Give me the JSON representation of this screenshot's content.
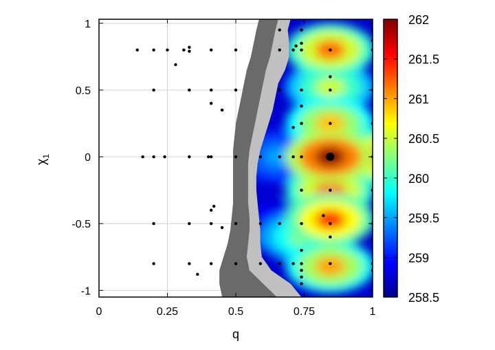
{
  "chart_data": {
    "type": "heatmap",
    "xlabel": "q",
    "ylabel": "χ",
    "ylabel_subscript": "1",
    "xlim": [
      0,
      1
    ],
    "ylim": [
      -1.05,
      1.03
    ],
    "x_ticks": [
      {
        "value": 0,
        "label": "0"
      },
      {
        "value": 0.25,
        "label": "0.25"
      },
      {
        "value": 0.5,
        "label": "0.5"
      },
      {
        "value": 0.75,
        "label": "0.75"
      },
      {
        "value": 1,
        "label": "1"
      }
    ],
    "y_ticks": [
      {
        "value": 1,
        "label": "1"
      },
      {
        "value": 0.5,
        "label": "0.5"
      },
      {
        "value": 0,
        "label": "0"
      },
      {
        "value": -0.5,
        "label": "-0.5"
      },
      {
        "value": -1,
        "label": "-1"
      }
    ],
    "grid": true,
    "colorbar": {
      "min": 258.5,
      "max": 262,
      "ticks": [
        {
          "value": 262,
          "label": "262"
        },
        {
          "value": 261.5,
          "label": "261.5"
        },
        {
          "value": 261,
          "label": "261"
        },
        {
          "value": 260.5,
          "label": "260.5"
        },
        {
          "value": 260,
          "label": "260"
        },
        {
          "value": 259.5,
          "label": "259.5"
        },
        {
          "value": 259,
          "label": "259"
        },
        {
          "value": 258.5,
          "label": "258.5"
        }
      ],
      "colors": [
        "#00008f",
        "#0000ff",
        "#0080ff",
        "#00ffff",
        "#80ff80",
        "#ffff00",
        "#ff8000",
        "#ff0000",
        "#800000"
      ]
    },
    "band_colors": {
      "dark": "#6a6a6a",
      "light": "#c0c0c0",
      "point": "#000000"
    },
    "boundary": [
      {
        "chi": 1.03,
        "dark": 0.585,
        "light": 0.655,
        "color": 0.7
      },
      {
        "chi": 0.95,
        "dark": 0.575,
        "light": 0.645,
        "color": 0.69
      },
      {
        "chi": 0.85,
        "dark": 0.565,
        "light": 0.635,
        "color": 0.695
      },
      {
        "chi": 0.75,
        "dark": 0.555,
        "light": 0.625,
        "color": 0.695
      },
      {
        "chi": 0.65,
        "dark": 0.54,
        "light": 0.61,
        "color": 0.68
      },
      {
        "chi": 0.55,
        "dark": 0.53,
        "light": 0.6,
        "color": 0.655
      },
      {
        "chi": 0.45,
        "dark": 0.52,
        "light": 0.59,
        "color": 0.645
      },
      {
        "chi": 0.35,
        "dark": 0.51,
        "light": 0.58,
        "color": 0.635
      },
      {
        "chi": 0.25,
        "dark": 0.5,
        "light": 0.57,
        "color": 0.62
      },
      {
        "chi": 0.15,
        "dark": 0.495,
        "light": 0.56,
        "color": 0.605
      },
      {
        "chi": 0.05,
        "dark": 0.49,
        "light": 0.55,
        "color": 0.59
      },
      {
        "chi": -0.05,
        "dark": 0.49,
        "light": 0.545,
        "color": 0.58
      },
      {
        "chi": -0.15,
        "dark": 0.49,
        "light": 0.545,
        "color": 0.575
      },
      {
        "chi": -0.25,
        "dark": 0.49,
        "light": 0.545,
        "color": 0.575
      },
      {
        "chi": -0.35,
        "dark": 0.49,
        "light": 0.545,
        "color": 0.58
      },
      {
        "chi": -0.45,
        "dark": 0.485,
        "light": 0.55,
        "color": 0.585
      },
      {
        "chi": -0.55,
        "dark": 0.48,
        "light": 0.55,
        "color": 0.59
      },
      {
        "chi": -0.65,
        "dark": 0.47,
        "light": 0.545,
        "color": 0.59
      },
      {
        "chi": -0.75,
        "dark": 0.455,
        "light": 0.54,
        "color": 0.595
      },
      {
        "chi": -0.85,
        "dark": 0.44,
        "light": 0.55,
        "color": 0.63
      },
      {
        "chi": -0.95,
        "dark": 0.44,
        "light": 0.6,
        "color": 0.7
      },
      {
        "chi": -1.05,
        "dark": 0.45,
        "light": 0.65,
        "color": 0.74
      }
    ],
    "hotspots": [
      {
        "q": 0.845,
        "chi": 0.0,
        "value": 262.0
      },
      {
        "q": 0.845,
        "chi": -0.25,
        "value": 261.2
      },
      {
        "q": 0.845,
        "chi": -0.47,
        "value": 261.4
      },
      {
        "q": 0.845,
        "chi": -0.82,
        "value": 261.0
      },
      {
        "q": 0.845,
        "chi": 0.25,
        "value": 260.9
      },
      {
        "q": 0.845,
        "chi": 0.52,
        "value": 260.5
      },
      {
        "q": 0.845,
        "chi": 0.8,
        "value": 261.2
      },
      {
        "q": 1.0,
        "chi": 0.0,
        "value": 261.3
      },
      {
        "q": 0.62,
        "chi": -0.5,
        "value": 259.0
      },
      {
        "q": 0.66,
        "chi": 0.0,
        "value": 259.5
      },
      {
        "q": 0.75,
        "chi": -0.6,
        "value": 260.3
      }
    ],
    "points": [
      {
        "q": 0.845,
        "chi": 0.0,
        "major": true
      },
      {
        "q": 0.14,
        "chi": 0.8
      },
      {
        "q": 0.2,
        "chi": 0.8
      },
      {
        "q": 0.25,
        "chi": 0.8
      },
      {
        "q": 0.31,
        "chi": 0.8
      },
      {
        "q": 0.33,
        "chi": 0.82
      },
      {
        "q": 0.33,
        "chi": 0.79
      },
      {
        "q": 0.41,
        "chi": 0.8
      },
      {
        "q": 0.5,
        "chi": 0.8
      },
      {
        "q": 0.66,
        "chi": 0.8
      },
      {
        "q": 0.71,
        "chi": 0.8
      },
      {
        "q": 0.74,
        "chi": 0.8
      },
      {
        "q": 0.845,
        "chi": 0.8
      },
      {
        "q": 1.0,
        "chi": 0.8
      },
      {
        "q": 0.28,
        "chi": 0.69
      },
      {
        "q": 0.66,
        "chi": 0.95
      },
      {
        "q": 0.74,
        "chi": 0.95
      },
      {
        "q": 1.0,
        "chi": 0.95
      },
      {
        "q": 0.74,
        "chi": 0.85
      },
      {
        "q": 1.0,
        "chi": 0.87
      },
      {
        "q": 0.72,
        "chi": 0.83
      },
      {
        "q": 0.2,
        "chi": 0.5
      },
      {
        "q": 0.33,
        "chi": 0.5
      },
      {
        "q": 0.41,
        "chi": 0.5
      },
      {
        "q": 0.5,
        "chi": 0.5
      },
      {
        "q": 0.66,
        "chi": 0.5
      },
      {
        "q": 0.74,
        "chi": 0.5
      },
      {
        "q": 0.845,
        "chi": 0.5
      },
      {
        "q": 1.0,
        "chi": 0.5
      },
      {
        "q": 0.41,
        "chi": 0.4
      },
      {
        "q": 0.45,
        "chi": 0.35
      },
      {
        "q": 0.845,
        "chi": 0.6
      },
      {
        "q": 0.71,
        "chi": 0.22
      },
      {
        "q": 0.74,
        "chi": 0.25
      },
      {
        "q": 0.845,
        "chi": 0.25
      },
      {
        "q": 1.0,
        "chi": 0.25
      },
      {
        "q": 0.74,
        "chi": 0.38
      },
      {
        "q": 0.16,
        "chi": 0.0
      },
      {
        "q": 0.2,
        "chi": 0.0
      },
      {
        "q": 0.24,
        "chi": 0.0
      },
      {
        "q": 0.33,
        "chi": 0.0
      },
      {
        "q": 0.4,
        "chi": 0.0
      },
      {
        "q": 0.41,
        "chi": 0.0
      },
      {
        "q": 0.5,
        "chi": 0.0
      },
      {
        "q": 0.59,
        "chi": 0.0
      },
      {
        "q": 0.66,
        "chi": 0.0
      },
      {
        "q": 0.71,
        "chi": 0.0
      },
      {
        "q": 0.74,
        "chi": 0.0
      },
      {
        "q": 1.0,
        "chi": 0.0
      },
      {
        "q": 0.74,
        "chi": -0.25
      },
      {
        "q": 0.845,
        "chi": -0.25
      },
      {
        "q": 1.0,
        "chi": -0.25
      },
      {
        "q": 0.42,
        "chi": -0.37
      },
      {
        "q": 0.41,
        "chi": -0.4
      },
      {
        "q": 0.2,
        "chi": -0.5
      },
      {
        "q": 0.33,
        "chi": -0.5
      },
      {
        "q": 0.41,
        "chi": -0.5
      },
      {
        "q": 0.5,
        "chi": -0.5
      },
      {
        "q": 0.59,
        "chi": -0.5
      },
      {
        "q": 0.66,
        "chi": -0.5
      },
      {
        "q": 0.74,
        "chi": -0.5
      },
      {
        "q": 0.845,
        "chi": -0.5
      },
      {
        "q": 1.0,
        "chi": -0.5
      },
      {
        "q": 0.45,
        "chi": -0.53
      },
      {
        "q": 0.82,
        "chi": -0.44
      },
      {
        "q": 0.845,
        "chi": -0.6
      },
      {
        "q": 1.0,
        "chi": -0.62
      },
      {
        "q": 0.74,
        "chi": -0.7
      },
      {
        "q": 0.2,
        "chi": -0.8
      },
      {
        "q": 0.33,
        "chi": -0.8
      },
      {
        "q": 0.41,
        "chi": -0.8
      },
      {
        "q": 0.5,
        "chi": -0.8
      },
      {
        "q": 0.59,
        "chi": -0.8
      },
      {
        "q": 0.66,
        "chi": -0.8
      },
      {
        "q": 0.71,
        "chi": -0.8
      },
      {
        "q": 0.74,
        "chi": -0.8
      },
      {
        "q": 0.845,
        "chi": -0.8
      },
      {
        "q": 1.0,
        "chi": -0.8
      },
      {
        "q": 0.36,
        "chi": -0.88
      },
      {
        "q": 0.74,
        "chi": -0.85
      },
      {
        "q": 0.74,
        "chi": -0.9
      },
      {
        "q": 0.74,
        "chi": -0.95
      },
      {
        "q": 1.0,
        "chi": -0.85
      }
    ]
  }
}
